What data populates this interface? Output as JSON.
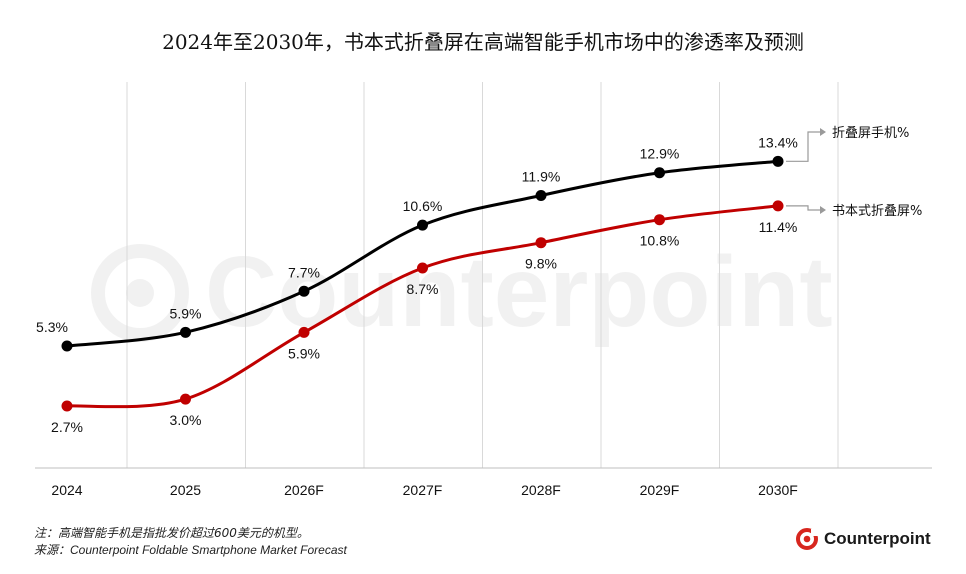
{
  "title": "2024年至2030年，书本式折叠屏在高端智能手机市场中的渗透率及预测",
  "footer": {
    "note": "注：高端智能手机是指批发价超过600美元的机型。",
    "source_label": "来源：",
    "source": "Counterpoint Foldable Smartphone Market Forecast"
  },
  "brand": {
    "name": "Counterpoint",
    "color": "#d7261e"
  },
  "chart_data": {
    "type": "line",
    "categories": [
      "2024",
      "2025",
      "2026F",
      "2027F",
      "2028F",
      "2029F",
      "2030F"
    ],
    "ylim": [
      0,
      16
    ],
    "grid": "vertical",
    "legend": "right, end of lines",
    "series": [
      {
        "name": "折叠屏手机%",
        "color": "#000000",
        "values": [
          5.3,
          5.9,
          7.7,
          10.6,
          11.9,
          12.9,
          13.4
        ],
        "labels": [
          "5.3%",
          "5.9%",
          "7.7%",
          "10.6%",
          "11.9%",
          "12.9%",
          "13.4%"
        ]
      },
      {
        "name": "书本式折叠屏%",
        "color": "#c00000",
        "values": [
          2.7,
          3.0,
          5.9,
          8.7,
          9.8,
          10.8,
          11.4
        ],
        "labels": [
          "2.7%",
          "3.0%",
          "5.9%",
          "8.7%",
          "9.8%",
          "10.8%",
          "11.4%"
        ]
      }
    ]
  }
}
